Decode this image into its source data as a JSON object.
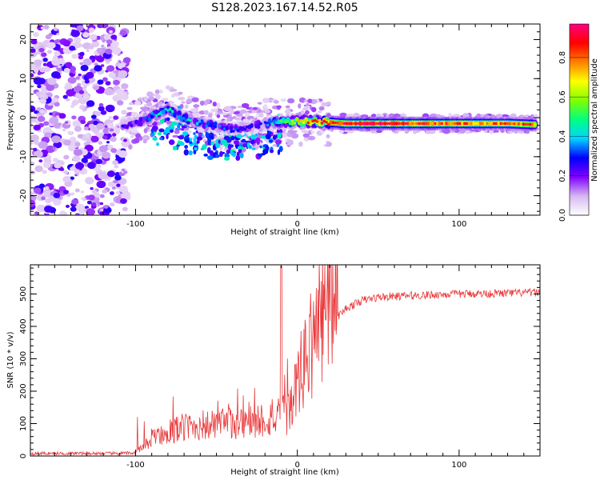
{
  "title": "S128.2023.167.14.52.R05",
  "chart_data": [
    {
      "type": "heatmap",
      "title": "S128.2023.167.14.52.R05",
      "xlabel": "Height of straight line (km)",
      "ylabel": "Frequency (Hz)",
      "xlim": [
        -165,
        150
      ],
      "ylim": [
        -25,
        24
      ],
      "xticks": [
        -100,
        0,
        100
      ],
      "yticks": [
        -20,
        -10,
        0,
        10,
        20
      ],
      "colorbar": {
        "label": "Normalized spectral amplitude",
        "range": [
          0,
          1
        ],
        "ticks": [
          "0.0",
          "0.2",
          "0.4",
          "0.6",
          "0.8"
        ],
        "colors": [
          "#ffffff",
          "#d6b8f0",
          "#8000ff",
          "#0000ff",
          "#00d4ff",
          "#00ff80",
          "#80ff00",
          "#ffff00",
          "#ff8000",
          "#ff0000",
          "#ff0080"
        ]
      },
      "ridge": {
        "x": [
          -110,
          -100,
          -90,
          -80,
          -70,
          -60,
          -50,
          -40,
          -30,
          -20,
          -10,
          0,
          10,
          20,
          30,
          50,
          70,
          100,
          130,
          148
        ],
        "y": [
          -2,
          -1.5,
          0.5,
          2,
          0,
          -1.5,
          -2,
          -3,
          -2.5,
          -1.5,
          -1,
          -1,
          -1,
          -1.2,
          -1.5,
          -1.5,
          -1.5,
          -1.5,
          -1.5,
          -1.8
        ],
        "amplitude": [
          0.25,
          0.3,
          0.4,
          0.45,
          0.4,
          0.4,
          0.35,
          0.3,
          0.3,
          0.35,
          0.5,
          0.7,
          0.8,
          0.9,
          0.95,
          0.95,
          0.9,
          0.85,
          0.8,
          0.85
        ]
      },
      "noise_region_x": [
        -165,
        -105
      ]
    },
    {
      "type": "line",
      "xlabel": "Height of straight line (km)",
      "ylabel": "SNR (10 * v/v)",
      "xlim": [
        -165,
        150
      ],
      "ylim": [
        0,
        590
      ],
      "xticks": [
        -100,
        0,
        100
      ],
      "yticks": [
        0,
        100,
        200,
        300,
        400,
        500
      ],
      "color": "#e8383a",
      "trend": {
        "x": [
          -165,
          -110,
          -100,
          -95,
          -90,
          -80,
          -70,
          -60,
          -50,
          -40,
          -30,
          -20,
          -10,
          -5,
          0,
          5,
          10,
          15,
          20,
          25,
          30,
          40,
          50,
          70,
          100,
          130,
          150
        ],
        "y": [
          8,
          8,
          10,
          20,
          45,
          60,
          70,
          75,
          75,
          80,
          85,
          90,
          95,
          110,
          175,
          235,
          290,
          340,
          390,
          430,
          455,
          480,
          490,
          495,
          500,
          502,
          505
        ]
      }
    }
  ]
}
